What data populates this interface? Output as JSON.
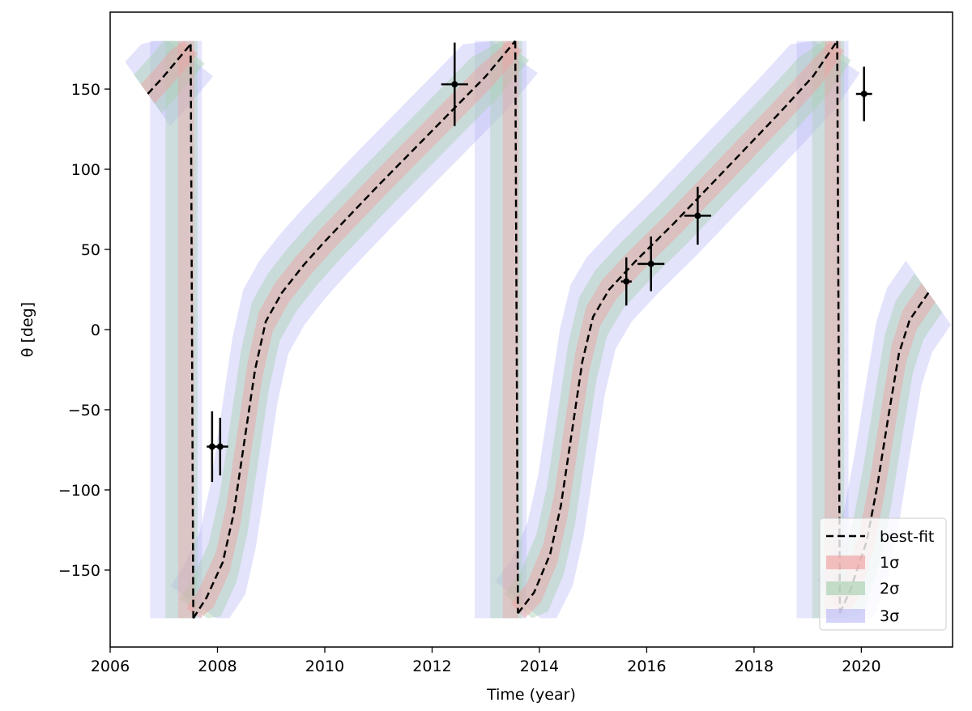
{
  "chart_data": {
    "type": "line",
    "xlabel": "Time (year)",
    "ylabel": "θ [deg]",
    "xlim": [
      2006.0,
      2021.7
    ],
    "ylim": [
      -198,
      198
    ],
    "xticks": [
      2006,
      2008,
      2010,
      2012,
      2014,
      2016,
      2018,
      2020
    ],
    "xtick_labels": [
      "2006",
      "2008",
      "2010",
      "2012",
      "2014",
      "2016",
      "2018",
      "2020"
    ],
    "yticks": [
      -150,
      -100,
      -50,
      0,
      50,
      100,
      150
    ],
    "ytick_labels": [
      "−150",
      "−100",
      "−50",
      "0",
      "50",
      "100",
      "150"
    ],
    "grid": false,
    "legend_position": "lower right",
    "series": [
      {
        "name": "best-fit",
        "style": "dashed",
        "color": "#000000",
        "x": [
          2006.7,
          2007.0,
          2007.25,
          2007.5,
          2007.55,
          2007.8,
          2008.1,
          2008.3,
          2008.5,
          2008.7,
          2008.9,
          2009.2,
          2009.6,
          2010.0,
          2011.0,
          2012.0,
          2013.0,
          2013.55,
          2013.6,
          2013.9,
          2014.2,
          2014.4,
          2014.6,
          2014.8,
          2015.0,
          2015.3,
          2015.8,
          2016.5,
          2017.5,
          2018.5,
          2019.1,
          2019.55,
          2019.6,
          2019.8,
          2020.1,
          2020.3,
          2020.5,
          2020.7,
          2020.9,
          2021.25
        ],
        "y": [
          147,
          158,
          168,
          178,
          -180,
          -167,
          -145,
          -115,
          -70,
          -25,
          5,
          23,
          40,
          55,
          90,
          124,
          158,
          180,
          -177,
          -164,
          -140,
          -110,
          -65,
          -20,
          8,
          25,
          43,
          66,
          101,
          136,
          158,
          180,
          -177,
          -162,
          -132,
          -97,
          -55,
          -15,
          6,
          23
        ]
      },
      {
        "name": "1σ",
        "color": "#f0a0a0",
        "opacity": 0.45
      },
      {
        "name": "2σ",
        "color": "#a8d0b0",
        "opacity": 0.45
      },
      {
        "name": "3σ",
        "color": "#b0b0f5",
        "opacity": 0.35
      }
    ],
    "data_points": [
      {
        "x": 2007.9,
        "y": -73,
        "xerr": 0.1,
        "yerr": 22
      },
      {
        "x": 2008.05,
        "y": -73,
        "xerr": 0.15,
        "yerr": 18
      },
      {
        "x": 2012.42,
        "y": 153,
        "xerr": 0.25,
        "yerr": 26
      },
      {
        "x": 2015.62,
        "y": 30,
        "xerr": 0.1,
        "yerr": 15
      },
      {
        "x": 2016.08,
        "y": 41,
        "xerr": 0.25,
        "yerr": 17
      },
      {
        "x": 2016.95,
        "y": 71,
        "xerr": 0.25,
        "yerr": 18
      },
      {
        "x": 2020.05,
        "y": 147,
        "xerr": 0.15,
        "yerr": 17
      }
    ]
  }
}
